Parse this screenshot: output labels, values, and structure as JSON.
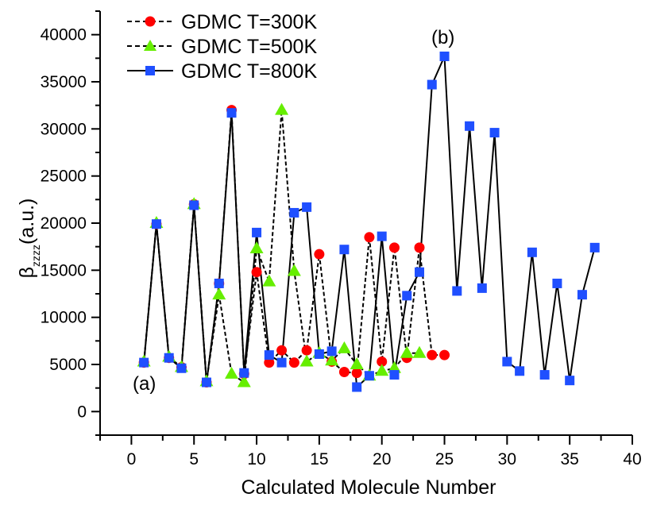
{
  "chart_data": {
    "type": "line",
    "xlabel": "Calculated Molecule Number",
    "ylabel_main": "β",
    "ylabel_sub": "zzzz",
    "ylabel_unit": "(a.u.)",
    "xlim": [
      -2.5,
      40
    ],
    "ylim": [
      -2500,
      42500
    ],
    "xticks": [
      0,
      5,
      10,
      15,
      20,
      25,
      30,
      35,
      40
    ],
    "yticks": [
      0,
      5000,
      10000,
      15000,
      20000,
      25000,
      30000,
      35000,
      40000
    ],
    "legend_position": "top-left",
    "annotations": [
      {
        "text": "(a)",
        "x": 1,
        "y": 3000
      },
      {
        "text": "(b)",
        "x": 24.9,
        "y": 39500
      }
    ],
    "series": [
      {
        "name": "GDMC T=300K",
        "marker": "circle",
        "color": "#ff0000",
        "line_style": "dashed",
        "x": [
          1,
          2,
          3,
          4,
          5,
          6,
          7,
          8,
          9,
          10,
          11,
          12,
          13,
          14,
          15,
          16,
          17,
          18,
          19,
          20,
          21,
          22,
          23,
          24,
          25
        ],
        "values": [
          5200,
          19900,
          5700,
          4700,
          22000,
          3100,
          13600,
          32000,
          4000,
          14800,
          5200,
          6500,
          5200,
          6500,
          16700,
          5300,
          4200,
          4100,
          18500,
          5300,
          17400,
          5700,
          17400,
          6000,
          6000
        ]
      },
      {
        "name": "GDMC T=500K",
        "marker": "triangle",
        "color": "#66ee00",
        "line_style": "dashed",
        "x": [
          1,
          2,
          3,
          4,
          5,
          6,
          7,
          8,
          9,
          10,
          11,
          12,
          13,
          14,
          15,
          16,
          17,
          18,
          19,
          20,
          21,
          22,
          23
        ],
        "values": [
          5300,
          20000,
          5800,
          4700,
          22000,
          3200,
          12400,
          4000,
          3100,
          17300,
          13800,
          32000,
          14900,
          5300,
          6200,
          5400,
          6700,
          5000,
          3800,
          4300,
          4600,
          6200,
          6200
        ]
      },
      {
        "name": "GDMC T=800K",
        "marker": "square",
        "color": "#1f4fff",
        "line_style": "solid",
        "x": [
          1,
          2,
          3,
          4,
          5,
          6,
          7,
          8,
          9,
          10,
          11,
          12,
          13,
          14,
          15,
          16,
          17,
          18,
          19,
          20,
          21,
          22,
          23,
          24,
          25,
          26,
          27,
          28,
          29,
          30,
          31,
          32,
          33,
          34,
          35,
          36,
          37
        ],
        "values": [
          5200,
          19900,
          5700,
          4600,
          21900,
          3100,
          13600,
          31700,
          4100,
          19000,
          6000,
          5200,
          21100,
          21700,
          6100,
          6400,
          17200,
          2600,
          3800,
          18600,
          3900,
          12300,
          14800,
          34700,
          37700,
          12800,
          30300,
          13100,
          29600,
          5300,
          4300,
          16900,
          3900,
          13600,
          3300,
          12400,
          17400
        ]
      }
    ]
  }
}
